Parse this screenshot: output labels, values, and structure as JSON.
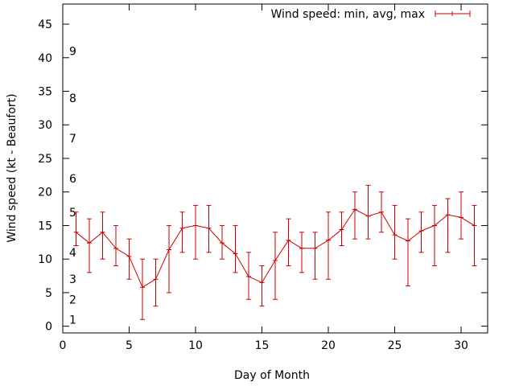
{
  "chart_data": {
    "type": "line",
    "title": "",
    "xlabel": "Day of Month",
    "ylabel": "Wind speed (kt - Beaufort)",
    "xlim": [
      0,
      32
    ],
    "ylim": [
      -1,
      48
    ],
    "xticks": [
      0,
      5,
      10,
      15,
      20,
      25,
      30
    ],
    "yticks": [
      0,
      5,
      10,
      15,
      20,
      25,
      30,
      35,
      40,
      45
    ],
    "grid": false,
    "legend_position": "top-right",
    "beaufort_labels": [
      {
        "label": "1",
        "value": 1
      },
      {
        "label": "2",
        "value": 4
      },
      {
        "label": "3",
        "value": 7
      },
      {
        "label": "4",
        "value": 11
      },
      {
        "label": "5",
        "value": 17
      },
      {
        "label": "6",
        "value": 22
      },
      {
        "label": "7",
        "value": 28
      },
      {
        "label": "8",
        "value": 34
      },
      {
        "label": "9",
        "value": 41
      }
    ],
    "series": [
      {
        "name": "Wind speed: min, avg, max",
        "color": "#cc0000",
        "x": [
          1,
          2,
          3,
          4,
          5,
          6,
          7,
          8,
          9,
          10,
          11,
          12,
          13,
          14,
          15,
          16,
          17,
          18,
          19,
          20,
          21,
          22,
          23,
          24,
          25,
          26,
          27,
          28,
          29,
          30,
          31
        ],
        "avg": [
          14,
          12.4,
          14,
          11.6,
          10.4,
          5.8,
          7,
          11.4,
          14.6,
          15,
          14.6,
          12.4,
          10.8,
          7.4,
          6.5,
          9.8,
          12.8,
          11.6,
          11.6,
          12.8,
          14.4,
          17.4,
          16.4,
          17,
          13.6,
          12.7,
          14.2,
          15,
          16.6,
          16.2,
          15
        ],
        "min": [
          12,
          8,
          10,
          9,
          7,
          1,
          3,
          5,
          11,
          10,
          11,
          10,
          8,
          4,
          3,
          4,
          9,
          8,
          7,
          7,
          12,
          13,
          13,
          14,
          10,
          6,
          11,
          9,
          11,
          13,
          9
        ],
        "max": [
          17,
          16,
          17,
          15,
          13,
          10,
          10,
          15,
          17,
          18,
          18,
          15,
          15,
          11,
          9,
          14,
          16,
          14,
          14,
          17,
          17,
          20,
          21,
          20,
          18,
          16,
          17,
          18,
          19,
          20,
          18
        ]
      }
    ]
  }
}
